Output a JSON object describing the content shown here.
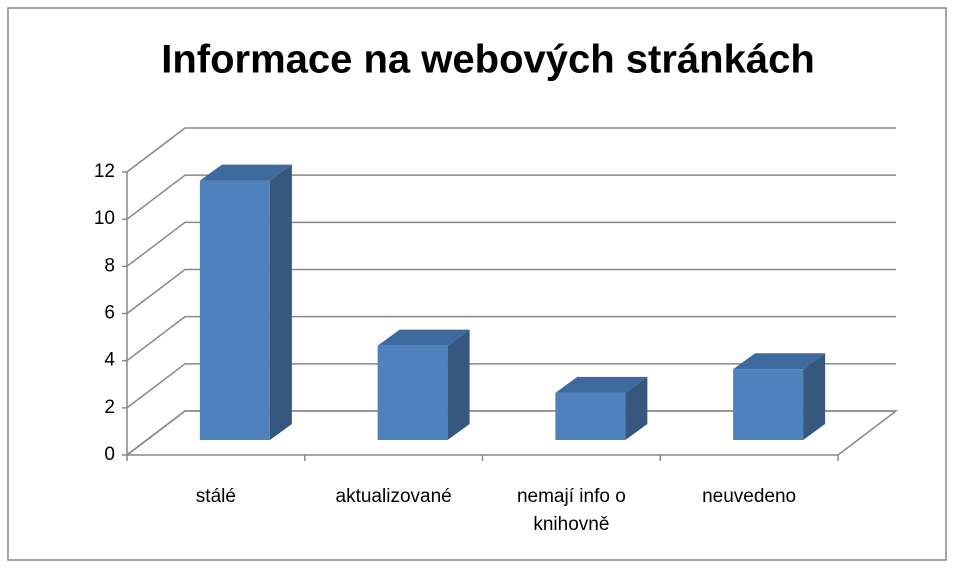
{
  "chart_data": {
    "type": "bar3d",
    "title": "Informace na webových stránkách",
    "categories": [
      "stálé",
      "aktualizované",
      "nemají info o knihovně",
      "neuvedeno"
    ],
    "values": [
      11,
      4,
      2,
      3
    ],
    "color": "#4f81bd",
    "ylim": [
      0,
      12
    ],
    "yticks": [
      0,
      2,
      4,
      6,
      8,
      10,
      12
    ],
    "grid": true
  }
}
